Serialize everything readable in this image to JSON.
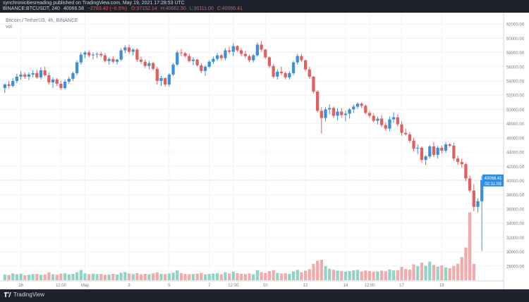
{
  "publisher_line": "synchronicitiesreading published on TradingView.com, May 19, 2021 17:28:53 UTC",
  "header": {
    "symbol": "BINANCE:BTCUSDT, 240",
    "quote_prefix": "40066.58",
    "change": "−2783.40 (−6.5%)",
    "open": "O:37152.14",
    "high": "H:40662.50",
    "low": "L:30111.00",
    "close": "C:40066.41"
  },
  "legend": {
    "title": "Bitcoin / TetherUS, 4h, BINANCE",
    "vol": "vol"
  },
  "price_badge": {
    "value": "40066.41",
    "countdown": "02:31:08"
  },
  "brand": {
    "name": "TradingView",
    "logo_icon": "tradingview-logo-icon"
  },
  "colors": {
    "up": "#3d8fd8",
    "down": "#e06060",
    "vol_up": "#8fd4c4",
    "vol_down": "#f2aaaa",
    "bar": "#1e222d",
    "badge": "#2d8ee8"
  },
  "chart_data": {
    "type": "candlestick",
    "title": "Bitcoin / TetherUS, 4h, BINANCE",
    "ylim": [
      26000,
      63000
    ],
    "y_ticks": [
      28000,
      30000,
      32000,
      34000,
      36000,
      38000,
      40000,
      42000,
      44000,
      46000,
      48000,
      50000,
      52000,
      54000,
      56000,
      58000,
      60000,
      62000
    ],
    "y_tick_labels": [
      "28000.00",
      "30000.00",
      "32000.00",
      "34000.00",
      "36000.00",
      "38000.00",
      "40000.00",
      "42000.00",
      "44000.00",
      "46000.00",
      "48000.00",
      "50000.00",
      "52000.00",
      "54000.00",
      "56000.00",
      "58000.00",
      "60000.00",
      "62000.00"
    ],
    "x_labels": [
      {
        "label": "28",
        "candle": 4
      },
      {
        "label": "12:00",
        "candle": 14
      },
      {
        "label": "May",
        "candle": 20
      },
      {
        "label": "3",
        "candle": 31
      },
      {
        "label": "5",
        "candle": 41
      },
      {
        "label": "7",
        "candle": 51
      },
      {
        "label": "12:00",
        "candle": 57
      },
      {
        "label": "10",
        "candle": 65
      },
      {
        "label": "12",
        "candle": 75
      },
      {
        "label": "14",
        "candle": 85
      },
      {
        "label": "12:00",
        "candle": 91
      },
      {
        "label": "17",
        "candle": 99
      },
      {
        "label": "19",
        "candle": 109
      }
    ],
    "grid": true,
    "last_price": 40066.41,
    "ohlc": [
      [
        53000,
        53700,
        52300,
        53500
      ],
      [
        53500,
        54000,
        53000,
        53300
      ],
      [
        53300,
        54400,
        53100,
        54000
      ],
      [
        54000,
        55000,
        53700,
        54600
      ],
      [
        54600,
        55400,
        54200,
        54900
      ],
      [
        54900,
        55200,
        54300,
        54600
      ],
      [
        54600,
        55200,
        54100,
        54900
      ],
      [
        54900,
        55500,
        54500,
        55100
      ],
      [
        55100,
        55600,
        54300,
        54500
      ],
      [
        54500,
        55900,
        54200,
        55500
      ],
      [
        55500,
        56000,
        54600,
        54800
      ],
      [
        54800,
        55200,
        53500,
        53800
      ],
      [
        53800,
        54500,
        53000,
        54200
      ],
      [
        54200,
        54400,
        53300,
        53600
      ],
      [
        53600,
        54000,
        52800,
        53000
      ],
      [
        53000,
        54200,
        52800,
        53900
      ],
      [
        53900,
        54600,
        53600,
        54300
      ],
      [
        54300,
        55300,
        54000,
        55100
      ],
      [
        55100,
        56900,
        54800,
        56600
      ],
      [
        56600,
        58000,
        56300,
        57700
      ],
      [
        57700,
        58200,
        57200,
        58000
      ],
      [
        58000,
        58300,
        57300,
        57600
      ],
      [
        57600,
        58000,
        57000,
        57700
      ],
      [
        57700,
        58000,
        57200,
        57800
      ],
      [
        57800,
        58100,
        57300,
        57600
      ],
      [
        57600,
        57900,
        56600,
        56800
      ],
      [
        56800,
        57300,
        56300,
        57100
      ],
      [
        57100,
        57500,
        56500,
        56700
      ],
      [
        56700,
        57100,
        56300,
        57000
      ],
      [
        57000,
        58600,
        56800,
        58300
      ],
      [
        58300,
        59000,
        57900,
        58700
      ],
      [
        58700,
        59100,
        57800,
        58100
      ],
      [
        58100,
        58600,
        57600,
        58400
      ],
      [
        58400,
        58600,
        56700,
        57000
      ],
      [
        57000,
        57400,
        56400,
        56700
      ],
      [
        56700,
        57000,
        55800,
        56100
      ],
      [
        56100,
        56800,
        55600,
        56500
      ],
      [
        56500,
        56700,
        55500,
        55700
      ],
      [
        55700,
        56000,
        53500,
        54000
      ],
      [
        54000,
        54700,
        53300,
        54400
      ],
      [
        54400,
        54500,
        53200,
        53500
      ],
      [
        53500,
        55100,
        53200,
        54900
      ],
      [
        54900,
        56500,
        54700,
        56300
      ],
      [
        56300,
        58300,
        56100,
        58000
      ],
      [
        58000,
        58500,
        57500,
        57900
      ],
      [
        57900,
        58100,
        57300,
        57500
      ],
      [
        57500,
        57800,
        56600,
        56800
      ],
      [
        56800,
        57300,
        56200,
        57000
      ],
      [
        57000,
        57100,
        56000,
        56200
      ],
      [
        56200,
        56500,
        55100,
        55400
      ],
      [
        55400,
        56200,
        54700,
        56000
      ],
      [
        56000,
        56900,
        55800,
        56700
      ],
      [
        56700,
        57400,
        56400,
        57100
      ],
      [
        57100,
        57900,
        56800,
        57600
      ],
      [
        57600,
        57800,
        56900,
        57200
      ],
      [
        57200,
        58600,
        56900,
        58300
      ],
      [
        58300,
        58800,
        57800,
        58100
      ],
      [
        58100,
        59300,
        57500,
        58900
      ],
      [
        58900,
        59000,
        58100,
        58300
      ],
      [
        58300,
        58600,
        57500,
        57800
      ],
      [
        57800,
        58200,
        57200,
        57500
      ],
      [
        57500,
        57700,
        56600,
        56900
      ],
      [
        56900,
        57800,
        56600,
        57600
      ],
      [
        57600,
        59400,
        57400,
        59100
      ],
      [
        59100,
        59600,
        58100,
        58400
      ],
      [
        58400,
        58500,
        57100,
        57300
      ],
      [
        57300,
        57500,
        55800,
        56100
      ],
      [
        56100,
        56400,
        54400,
        54600
      ],
      [
        54600,
        55600,
        54200,
        55300
      ],
      [
        55300,
        56000,
        54800,
        55100
      ],
      [
        55100,
        55300,
        54200,
        54500
      ],
      [
        54500,
        55400,
        54200,
        55100
      ],
      [
        55100,
        56800,
        54800,
        56600
      ],
      [
        56600,
        57800,
        56300,
        57500
      ],
      [
        57500,
        57800,
        56700,
        56900
      ],
      [
        56900,
        57000,
        55400,
        55600
      ],
      [
        55600,
        56000,
        54300,
        54600
      ],
      [
        54600,
        54700,
        52300,
        52500
      ],
      [
        52500,
        52700,
        49600,
        49800
      ],
      [
        49800,
        50300,
        46600,
        48800
      ],
      [
        48800,
        50300,
        48300,
        50000
      ],
      [
        50000,
        50700,
        49300,
        50200
      ],
      [
        50200,
        50400,
        48800,
        49100
      ],
      [
        49100,
        50200,
        48500,
        49700
      ],
      [
        49700,
        50200,
        48800,
        49200
      ],
      [
        49200,
        49800,
        48300,
        49400
      ],
      [
        49400,
        50200,
        48700,
        50000
      ],
      [
        50000,
        50700,
        49500,
        50400
      ],
      [
        50400,
        51000,
        50100,
        50800
      ],
      [
        50800,
        51000,
        50200,
        50500
      ],
      [
        50500,
        50700,
        49300,
        49500
      ],
      [
        49500,
        49800,
        48800,
        49100
      ],
      [
        49100,
        49400,
        48200,
        48400
      ],
      [
        48400,
        49000,
        47900,
        48700
      ],
      [
        48700,
        49200,
        47500,
        47800
      ],
      [
        47800,
        48200,
        47000,
        47300
      ],
      [
        47300,
        49000,
        46900,
        48600
      ],
      [
        48600,
        49600,
        48100,
        48900
      ],
      [
        48900,
        49300,
        47600,
        47900
      ],
      [
        47900,
        48300,
        46300,
        46700
      ],
      [
        46700,
        47300,
        46300,
        46500
      ],
      [
        46500,
        46800,
        45300,
        45600
      ],
      [
        45600,
        46000,
        44100,
        44500
      ],
      [
        44500,
        45100,
        43700,
        44600
      ],
      [
        44600,
        44800,
        42500,
        42900
      ],
      [
        42900,
        43600,
        42200,
        43400
      ],
      [
        43400,
        45000,
        43100,
        44800
      ],
      [
        44800,
        45400,
        43300,
        43600
      ],
      [
        43600,
        44900,
        43100,
        44600
      ],
      [
        44600,
        44900,
        43800,
        44200
      ],
      [
        44200,
        45400,
        43900,
        45100
      ],
      [
        45100,
        45300,
        44700,
        44900
      ],
      [
        44900,
        45300,
        42800,
        43100
      ],
      [
        43100,
        43500,
        42200,
        42600
      ],
      [
        42600,
        43100,
        41800,
        42300
      ],
      [
        42300,
        42500,
        39900,
        40300
      ],
      [
        40300,
        40700,
        38300,
        38600
      ],
      [
        38600,
        39500,
        35700,
        36300
      ],
      [
        36300,
        37500,
        35500,
        37100
      ],
      [
        37100,
        40660,
        30100,
        40066.41
      ]
    ],
    "volume_max": 120000,
    "volume": [
      9000,
      8500,
      11000,
      9500,
      10500,
      8000,
      9000,
      9800,
      10200,
      8700,
      9300,
      12500,
      9600,
      8900,
      10700,
      11200,
      9400,
      10300,
      12800,
      16500,
      11000,
      9700,
      10500,
      9900,
      10100,
      8800,
      9200,
      10400,
      9300,
      12100,
      13200,
      10800,
      9900,
      11500,
      9700,
      10300,
      9600,
      11100,
      12600,
      10200,
      9800,
      10900,
      12300,
      15800,
      11200,
      10100,
      9700,
      9900,
      10600,
      11800,
      9400,
      10200,
      10800,
      11300,
      9600,
      12900,
      10900,
      13800,
      11400,
      10500,
      9900,
      10800,
      9600,
      16200,
      13100,
      11600,
      14800,
      16300,
      11800,
      10700,
      11300,
      10100,
      14200,
      16700,
      12900,
      15300,
      17800,
      26400,
      31500,
      33200,
      22800,
      18600,
      16900,
      15400,
      14800,
      13900,
      14700,
      15900,
      16800,
      14200,
      15700,
      14900,
      13800,
      14300,
      15600,
      14700,
      17400,
      15800,
      16300,
      21700,
      18200,
      17300,
      25700,
      22800,
      28400,
      23600,
      30200,
      24700,
      21800,
      24100,
      20800,
      19300,
      23100,
      26800,
      37500,
      53000,
      110000,
      26400
    ]
  }
}
